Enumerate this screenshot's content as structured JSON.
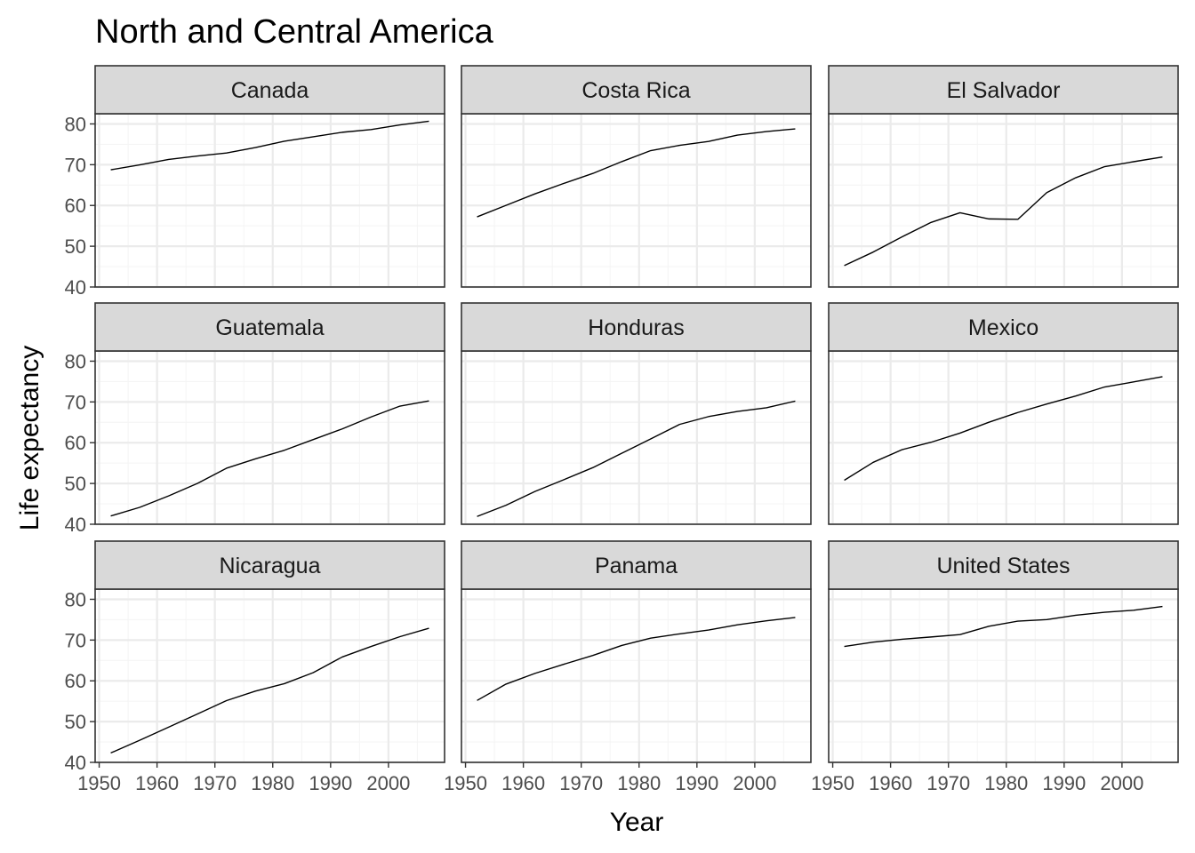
{
  "title": "North and Central America",
  "colors": {
    "background": "#ffffff",
    "panel_border": "#333333",
    "strip_fill": "#d9d9d9",
    "grid_major": "#ebebeb",
    "grid_minor": "#f5f5f5",
    "line": "#000000",
    "tick_label": "#4d4d4d"
  },
  "chart_data": {
    "type": "line",
    "layout": "facet-grid 3x3",
    "xlabel": "Year",
    "ylabel": "Life expectancy",
    "xlim": [
      1949.3,
      2009.7
    ],
    "ylim": [
      40,
      82.5
    ],
    "x_ticks": [
      1950,
      1960,
      1970,
      1980,
      1990,
      2000
    ],
    "y_ticks": [
      40,
      50,
      60,
      70,
      80
    ],
    "grid": true,
    "x": [
      1952,
      1957,
      1962,
      1967,
      1972,
      1977,
      1982,
      1987,
      1992,
      1997,
      2002,
      2007
    ],
    "panels": [
      {
        "name": "Canada",
        "values": [
          68.75,
          69.96,
          71.3,
          72.13,
          72.88,
          74.21,
          75.76,
          76.86,
          77.95,
          78.61,
          79.77,
          80.65
        ]
      },
      {
        "name": "Costa Rica",
        "values": [
          57.21,
          60.03,
          62.84,
          65.42,
          67.85,
          70.75,
          73.45,
          74.75,
          75.71,
          77.26,
          78.12,
          78.78
        ]
      },
      {
        "name": "El Salvador",
        "values": [
          45.26,
          48.57,
          52.31,
          55.85,
          58.21,
          56.7,
          56.6,
          63.15,
          66.8,
          69.53,
          70.73,
          71.88
        ]
      },
      {
        "name": "Guatemala",
        "values": [
          42.02,
          44.14,
          46.95,
          50.02,
          53.74,
          56.03,
          58.14,
          60.78,
          63.37,
          66.32,
          68.98,
          70.26
        ]
      },
      {
        "name": "Honduras",
        "values": [
          41.91,
          44.66,
          48.04,
          50.92,
          53.88,
          57.4,
          60.91,
          64.49,
          66.4,
          67.66,
          68.57,
          70.2
        ]
      },
      {
        "name": "Mexico",
        "values": [
          50.79,
          55.19,
          58.3,
          60.11,
          62.36,
          65.03,
          67.41,
          69.5,
          71.46,
          73.67,
          74.9,
          76.2
        ]
      },
      {
        "name": "Nicaragua",
        "values": [
          42.31,
          45.43,
          48.63,
          51.88,
          55.15,
          57.47,
          59.3,
          62.01,
          65.84,
          68.43,
          70.84,
          72.9
        ]
      },
      {
        "name": "Panama",
        "values": [
          55.19,
          59.2,
          61.82,
          64.07,
          66.22,
          68.68,
          70.47,
          71.52,
          72.46,
          73.74,
          74.71,
          75.54
        ]
      },
      {
        "name": "United States",
        "values": [
          68.44,
          69.49,
          70.21,
          70.76,
          71.34,
          73.38,
          74.65,
          75.02,
          76.09,
          76.81,
          77.31,
          78.24
        ]
      }
    ]
  }
}
